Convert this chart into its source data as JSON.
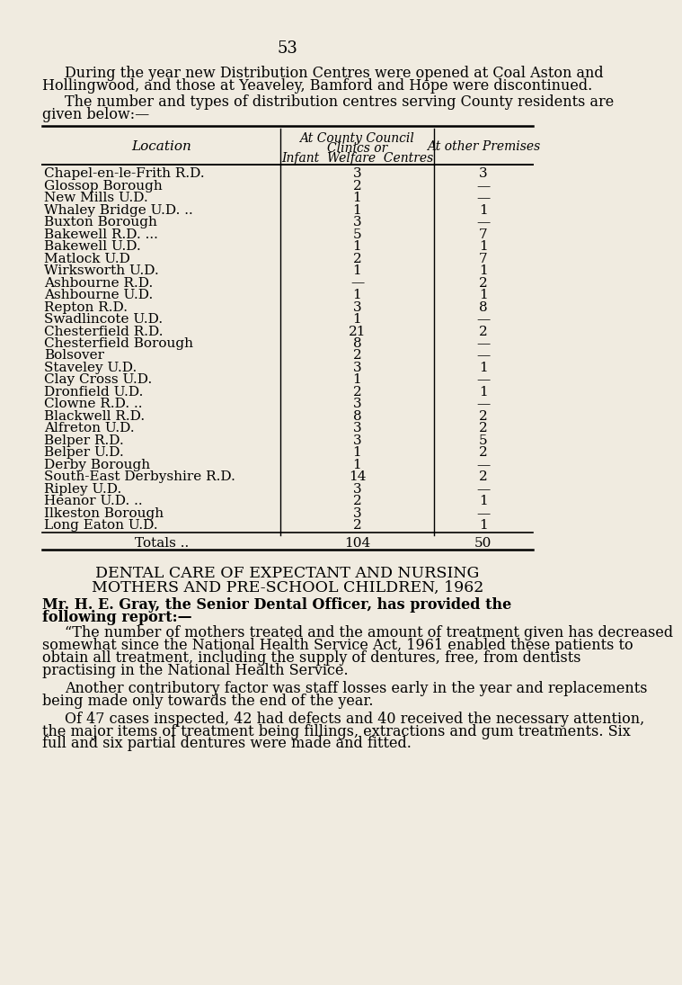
{
  "page_number": "53",
  "bg_color": "#f0ebe0",
  "para1": "During the year new Distribution Centres were opened at Coal Aston and Hollingwood, and those at Yeaveley, Bamford and Hope were discontinued.",
  "para2": "The number and types of distribution centres serving County residents are given below:—",
  "col_loc": "Location",
  "col_header1_lines": [
    "At County Council",
    "Clinics or",
    "Infant  Welfare  Centres"
  ],
  "col_header2": "At other Premises",
  "table_rows": [
    [
      "Chapel-en-le-Frith R.D.",
      "3",
      "3"
    ],
    [
      "Glossop Borough",
      "2",
      "—"
    ],
    [
      "New Mills U.D.",
      "1",
      "—"
    ],
    [
      "Whaley Bridge U.D. ..",
      "1",
      "1"
    ],
    [
      "Buxton Borough",
      "3",
      "—"
    ],
    [
      "Bakewell R.D. ...",
      "5",
      "7"
    ],
    [
      "Bakewell U.D.",
      "1",
      "1"
    ],
    [
      "Matlock U.D",
      "2",
      "7"
    ],
    [
      "Wirksworth U.D.",
      "1",
      "1"
    ],
    [
      "Ashbourne R.D.",
      "—",
      "2"
    ],
    [
      "Ashbourne U.D.",
      "1",
      "1"
    ],
    [
      "Repton R.D.",
      "3",
      "8"
    ],
    [
      "Swadlincote U.D.",
      "1",
      "—"
    ],
    [
      "Chesterfield R.D.",
      "21",
      "2"
    ],
    [
      "Chesterfield Borough",
      "8",
      "—"
    ],
    [
      "Bolsover",
      "2",
      "—"
    ],
    [
      "Staveley U.D.",
      "3",
      "1"
    ],
    [
      "Clay Cross U.D.",
      "1",
      "—"
    ],
    [
      "Dronfield U.D.",
      "2",
      "1"
    ],
    [
      "Clowne R.D. ..",
      "3",
      "—"
    ],
    [
      "Blackwell R.D.",
      "8",
      "2"
    ],
    [
      "Alfreton U.D.",
      "3",
      "2"
    ],
    [
      "Belper R.D.",
      "3",
      "5"
    ],
    [
      "Belper U.D.",
      "1",
      "2"
    ],
    [
      "Derby Borough",
      "1",
      "—"
    ],
    [
      "South-East Derbyshire R.D.",
      "14",
      "2"
    ],
    [
      "Ripley U.D.",
      "3",
      "—"
    ],
    [
      "Heanor U.D. ..",
      "2",
      "1"
    ],
    [
      "Ilkeston Borough",
      "3",
      "—"
    ],
    [
      "Long Eaton U.D.",
      "2",
      "1"
    ]
  ],
  "totals_label": "Totals ..",
  "totals_col1": "104",
  "totals_col2": "50",
  "section_title1": "DENTAL CARE OF EXPECTANT AND NURSING",
  "section_title2": "MOTHERS AND PRE-SCHOOL CHILDREN, 1962",
  "bold_line1": "Mr. H. E. Gray, the Senior Dental Officer, has provided the",
  "bold_line2": "following report:—",
  "body_para1": "“The number of mothers treated and the amount of treatment given has decreased somewhat since the National Health Service Act, 1961 enabled these patients to obtain all treatment, including the supply of dentures, free, from dentists practising in the National Health Service.",
  "body_para2": "Another contributory factor was staff losses early in the year and replacements being made only towards the end of the year.",
  "body_para3": "Of 47 cases inspected, 42 had defects and 40 received the necessary attention, the major items of treatment being fillings, extractions and gum treatments. Six full and six partial dentures were made and fitted."
}
